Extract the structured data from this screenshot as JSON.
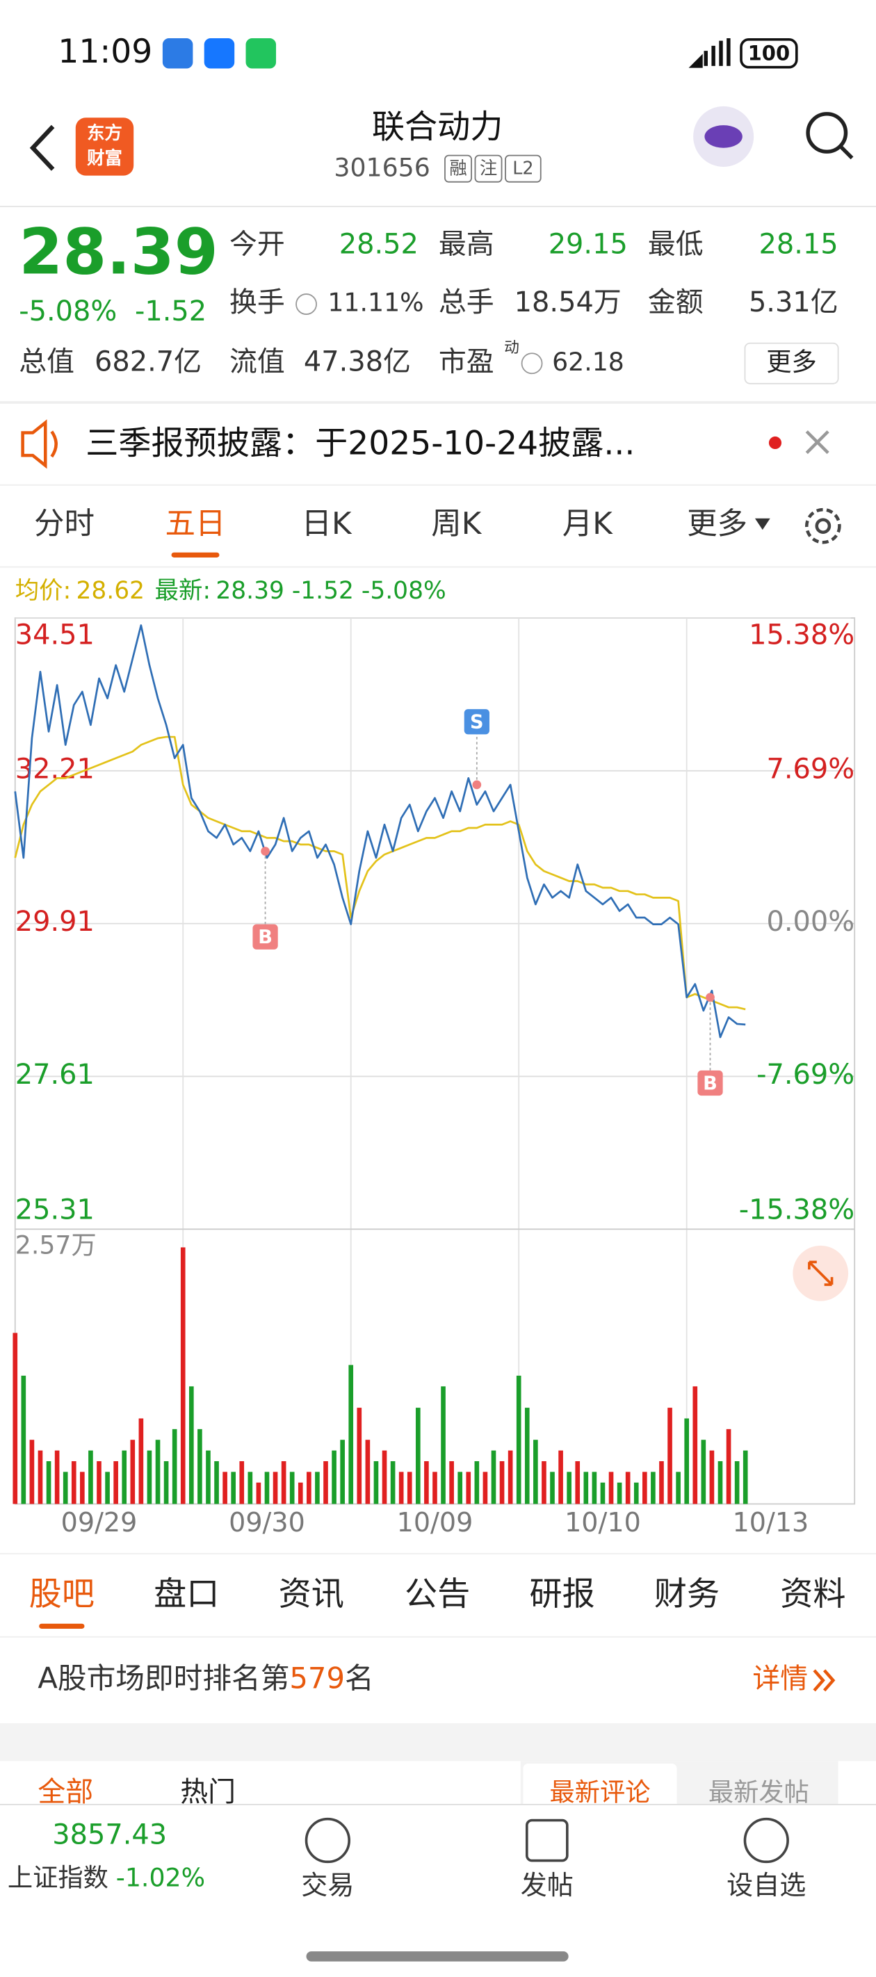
{
  "status_bar": {
    "time": "11:09",
    "battery": "100"
  },
  "header": {
    "logo": [
      "东方",
      "财富"
    ],
    "name": "联合动力",
    "code": "301656",
    "tags": [
      "融",
      "注",
      "L2"
    ]
  },
  "quote": {
    "price": "28.39",
    "change_pct": "-5.08%",
    "change": "-1.52",
    "fields": [
      {
        "label": "今开",
        "value": "28.52"
      },
      {
        "label": "最高",
        "value": "29.15"
      },
      {
        "label": "最低",
        "value": "28.15"
      },
      {
        "label": "换手",
        "value": "11.11%"
      },
      {
        "label": "总手",
        "value": "18.54万"
      },
      {
        "label": "金额",
        "value": "5.31亿"
      },
      {
        "label": "总值",
        "value": "682.7亿"
      },
      {
        "label": "流值",
        "value": "47.38亿"
      },
      {
        "label": "市盈",
        "sup": "动",
        "value": "62.18"
      }
    ],
    "more": "更多"
  },
  "notice": {
    "text": "三季报预披露：于2025-10-24披露..."
  },
  "chart_tabs": [
    "分时",
    "五日",
    "日K",
    "周K",
    "月K",
    "更多"
  ],
  "legend": [
    {
      "label": "均价:",
      "value": "28.62"
    },
    {
      "label": "最新:",
      "value": "28.39 -1.52 -5.08%"
    }
  ],
  "chart_data": {
    "type": "line",
    "x": [
      0,
      0.05,
      0.1,
      0.15,
      0.2,
      0.25,
      0.3,
      0.35,
      0.4,
      0.45,
      0.5,
      0.55,
      0.6,
      0.65,
      0.7,
      0.75,
      0.8,
      0.85,
      0.9,
      0.95,
      1,
      1.05,
      1.1,
      1.15,
      1.2,
      1.25,
      1.3,
      1.35,
      1.4,
      1.45,
      1.5,
      1.55,
      1.6,
      1.65,
      1.7,
      1.75,
      1.8,
      1.85,
      1.9,
      1.95,
      2,
      2.05,
      2.1,
      2.15,
      2.2,
      2.25,
      2.3,
      2.35,
      2.4,
      2.45,
      2.5,
      2.55,
      2.6,
      2.65,
      2.7,
      2.75,
      2.8,
      2.85,
      2.9,
      2.95,
      3,
      3.05,
      3.1,
      3.15,
      3.2,
      3.25,
      3.3,
      3.35,
      3.4,
      3.45,
      3.5,
      3.55,
      3.6,
      3.65,
      3.7,
      3.75,
      3.8,
      3.85,
      3.9,
      3.95,
      4,
      4.05,
      4.1,
      4.15,
      4.2,
      4.25,
      4.3,
      4.35
    ],
    "xlim": [
      0,
      5
    ],
    "xticks": [
      {
        "value": 0.5,
        "label": "09/29"
      },
      {
        "value": 1.5,
        "label": "09/30"
      },
      {
        "value": 2.5,
        "label": "10/09"
      },
      {
        "value": 3.5,
        "label": "10/10"
      },
      {
        "value": 4.5,
        "label": "10/13"
      }
    ],
    "ylim": [
      25.31,
      34.51
    ],
    "yticks": [
      34.51,
      32.21,
      29.91,
      27.61,
      25.31
    ],
    "y2lim": [
      -15.38,
      15.38
    ],
    "y2ticks": [
      {
        "value": 15.38,
        "label": "15.38%"
      },
      {
        "value": 7.69,
        "label": "7.69%"
      },
      {
        "value": 0,
        "label": "0.00%"
      },
      {
        "value": -7.69,
        "label": "-7.69%"
      },
      {
        "value": -15.38,
        "label": "-15.38%"
      }
    ],
    "series": [
      {
        "color": "#2f6eb5",
        "values": [
          31.9,
          30.9,
          32.7,
          33.7,
          32.8,
          33.5,
          32.6,
          33.2,
          33.4,
          32.9,
          33.6,
          33.3,
          33.8,
          33.4,
          33.9,
          34.4,
          33.8,
          33.3,
          32.9,
          32.4,
          32.6,
          31.8,
          31.6,
          31.3,
          31.2,
          31.4,
          31.1,
          31.2,
          31.0,
          31.3,
          30.9,
          31.1,
          31.5,
          31.0,
          31.2,
          31.3,
          30.9,
          31.1,
          30.8,
          30.3,
          29.9,
          30.7,
          31.3,
          30.9,
          31.4,
          31.0,
          31.5,
          31.7,
          31.3,
          31.6,
          31.8,
          31.5,
          31.9,
          31.6,
          32.1,
          31.7,
          31.9,
          31.6,
          31.8,
          32.0,
          31.3,
          30.6,
          30.2,
          30.5,
          30.3,
          30.4,
          30.3,
          30.8,
          30.4,
          30.3,
          30.2,
          30.3,
          30.1,
          30.2,
          30.0,
          30.0,
          29.9,
          29.9,
          30.0,
          29.9,
          28.8,
          29.0,
          28.6,
          28.9,
          28.2,
          28.5,
          28.4,
          28.39
        ]
      },
      {
        "color": "#e3c21a",
        "values": [
          30.9,
          31.4,
          31.7,
          31.9,
          32.0,
          32.1,
          32.1,
          32.15,
          32.2,
          32.25,
          32.3,
          32.35,
          32.4,
          32.45,
          32.5,
          32.6,
          32.65,
          32.7,
          32.72,
          32.72,
          32.0,
          31.7,
          31.6,
          31.5,
          31.45,
          31.4,
          31.35,
          31.3,
          31.3,
          31.25,
          31.2,
          31.2,
          31.15,
          31.15,
          31.1,
          31.1,
          31.05,
          31.0,
          31.0,
          30.95,
          30.0,
          30.4,
          30.7,
          30.85,
          30.95,
          31.0,
          31.05,
          31.1,
          31.15,
          31.2,
          31.2,
          31.25,
          31.3,
          31.3,
          31.35,
          31.35,
          31.4,
          31.4,
          31.4,
          31.45,
          31.4,
          31.0,
          30.8,
          30.7,
          30.65,
          30.6,
          30.55,
          30.55,
          30.5,
          30.5,
          30.45,
          30.45,
          30.4,
          30.4,
          30.35,
          30.35,
          30.3,
          30.3,
          30.3,
          30.25,
          28.8,
          28.85,
          28.8,
          28.75,
          28.7,
          28.65,
          28.65,
          28.62
        ]
      }
    ],
    "annotations": [
      {
        "label": "S",
        "x": 2.75,
        "y": 32.0,
        "position": "above"
      },
      {
        "label": "B",
        "x": 1.49,
        "y": 31.0,
        "position": "below"
      },
      {
        "label": "B",
        "x": 4.14,
        "y": 28.8,
        "position": "below"
      }
    ],
    "volume": {
      "ylim": [
        0,
        2.57
      ],
      "yticks": [
        {
          "value": 2.57,
          "label": "2.57万"
        }
      ],
      "up_color": "#e02020",
      "down_color": "#1a9e2a",
      "values": [
        1.6,
        1.2,
        0.6,
        0.5,
        0.4,
        0.5,
        0.3,
        0.4,
        0.3,
        0.5,
        0.4,
        0.3,
        0.4,
        0.5,
        0.6,
        0.8,
        0.5,
        0.6,
        0.4,
        0.7,
        2.4,
        1.1,
        0.7,
        0.5,
        0.4,
        0.3,
        0.3,
        0.4,
        0.3,
        0.2,
        0.3,
        0.3,
        0.4,
        0.3,
        0.2,
        0.3,
        0.3,
        0.4,
        0.5,
        0.6,
        1.3,
        0.9,
        0.6,
        0.4,
        0.5,
        0.4,
        0.3,
        0.3,
        0.9,
        0.4,
        0.3,
        1.1,
        0.4,
        0.3,
        0.3,
        0.4,
        0.3,
        0.5,
        0.4,
        0.5,
        1.2,
        0.9,
        0.6,
        0.4,
        0.3,
        0.5,
        0.3,
        0.4,
        0.3,
        0.3,
        0.2,
        0.3,
        0.2,
        0.3,
        0.2,
        0.3,
        0.3,
        0.4,
        0.9,
        0.3,
        0.8,
        1.1,
        0.6,
        0.5,
        0.4,
        0.7,
        0.4,
        0.5
      ]
    }
  },
  "bottom_tabs": [
    "股吧",
    "盘口",
    "资讯",
    "公告",
    "研报",
    "财务",
    "资料"
  ],
  "rank": {
    "prefix": "A股市场即时排名第",
    "number": "579",
    "suffix": "名",
    "detail": "详情"
  },
  "sub_tabs": [
    "全部",
    "热门",
    "最新评论",
    "最新发帖"
  ],
  "footer": {
    "index_value": "3857.43",
    "index_name": "上证指数",
    "index_change": "-1.02%",
    "actions": [
      "交易",
      "发帖",
      "设自选"
    ]
  }
}
